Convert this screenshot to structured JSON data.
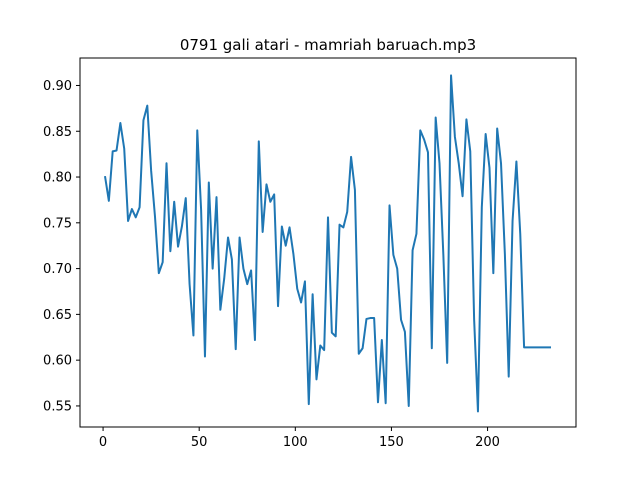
{
  "chart_data": {
    "type": "line",
    "title": "0791 gali atari - mamriah baruach.mp3",
    "xlabel": "",
    "ylabel": "",
    "xlim": [
      -12,
      246
    ],
    "ylim": [
      0.527,
      0.93
    ],
    "xticks": [
      0,
      50,
      100,
      150,
      200
    ],
    "xtick_labels": [
      "0",
      "50",
      "100",
      "150",
      "200"
    ],
    "yticks": [
      0.55,
      0.6,
      0.65,
      0.7,
      0.75,
      0.8,
      0.85,
      0.9
    ],
    "ytick_labels": [
      "0.55",
      "0.60",
      "0.65",
      "0.70",
      "0.75",
      "0.80",
      "0.85",
      "0.90"
    ],
    "grid": false,
    "line_color": "#1f77b4",
    "series": [
      {
        "x": [
          1,
          3,
          5,
          7,
          9,
          11,
          13,
          15,
          17,
          19,
          21,
          23,
          25,
          27,
          29,
          31,
          33,
          35,
          37,
          39,
          41,
          43,
          45,
          47,
          49,
          51,
          53,
          55,
          57,
          59,
          61,
          63,
          65,
          67,
          69,
          71,
          73,
          75,
          77,
          79,
          81,
          83,
          85,
          87,
          89,
          91,
          93,
          95,
          97,
          99,
          101,
          103,
          105,
          107,
          109,
          111,
          113,
          115,
          117,
          119,
          121,
          123,
          125,
          127,
          129,
          131,
          133,
          135,
          137,
          139,
          141,
          143,
          145,
          147,
          149,
          151,
          153,
          155,
          157,
          159,
          161,
          163,
          165,
          167,
          169,
          171,
          173,
          175,
          177,
          179,
          181,
          183,
          185,
          187,
          189,
          191,
          193,
          195,
          197,
          199,
          201,
          203,
          205,
          207,
          209,
          211,
          213,
          215,
          217,
          219,
          221,
          223,
          225,
          227,
          229,
          231,
          233
        ],
        "values": [
          0.801,
          0.774,
          0.828,
          0.829,
          0.859,
          0.831,
          0.752,
          0.765,
          0.756,
          0.767,
          0.862,
          0.878,
          0.807,
          0.757,
          0.695,
          0.707,
          0.815,
          0.719,
          0.773,
          0.724,
          0.746,
          0.777,
          0.683,
          0.627,
          0.851,
          0.764,
          0.604,
          0.794,
          0.7,
          0.778,
          0.655,
          0.689,
          0.734,
          0.71,
          0.612,
          0.734,
          0.7,
          0.683,
          0.698,
          0.622,
          0.839,
          0.74,
          0.792,
          0.773,
          0.781,
          0.659,
          0.746,
          0.725,
          0.745,
          0.716,
          0.678,
          0.663,
          0.686,
          0.552,
          0.672,
          0.579,
          0.616,
          0.611,
          0.756,
          0.63,
          0.626,
          0.748,
          0.745,
          0.762,
          0.822,
          0.786,
          0.607,
          0.613,
          0.645,
          0.646,
          0.646,
          0.554,
          0.622,
          0.553,
          0.769,
          0.715,
          0.7,
          0.644,
          0.631,
          0.55,
          0.72,
          0.738,
          0.851,
          0.841,
          0.827,
          0.613,
          0.865,
          0.815,
          0.715,
          0.597,
          0.911,
          0.844,
          0.815,
          0.779,
          0.863,
          0.828,
          0.645,
          0.544,
          0.767,
          0.847,
          0.81,
          0.695,
          0.853,
          0.815,
          0.716,
          0.582,
          0.752,
          0.817,
          0.738,
          0.614,
          0.614,
          0.614,
          0.614,
          0.614,
          0.614,
          0.614,
          0.614
        ]
      }
    ]
  }
}
